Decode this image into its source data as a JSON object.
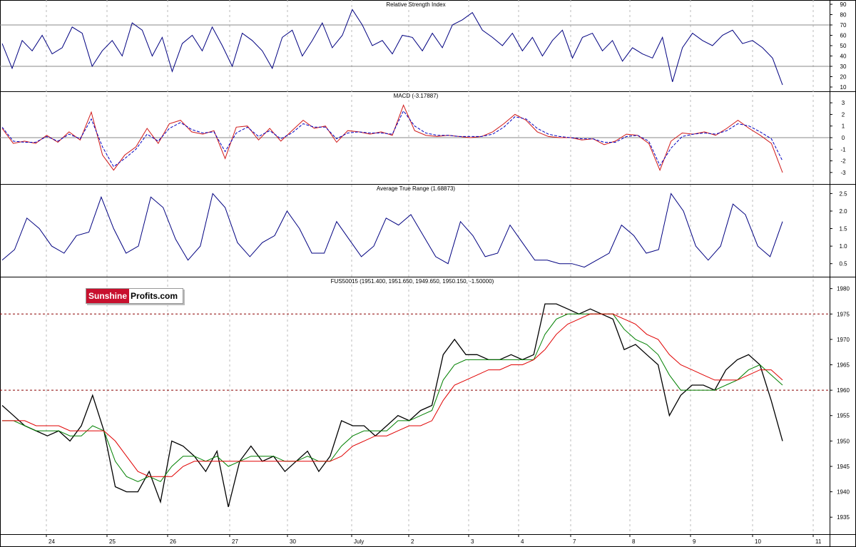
{
  "logo": {
    "part1": "Sunshine",
    "part2": "Profits.com"
  },
  "x_labels": [
    "24",
    "25",
    "26",
    "27",
    "30",
    "July",
    "2",
    "3",
    "4",
    "7",
    "8",
    "9",
    "10",
    "11"
  ],
  "colors": {
    "rsi": "#000080",
    "macd": "#d01818",
    "signal": "#0000c0",
    "atr": "#000080",
    "price": "#000000",
    "ma_fast": "#008000",
    "ma_slow": "#e00000",
    "hline": "#8b0000",
    "grid": "#bbbbbb"
  },
  "chart_data": [
    {
      "type": "line",
      "title": "Relative Strength Index",
      "ylim": [
        10,
        90
      ],
      "yticks": [
        "90",
        "80",
        "70",
        "60",
        "50",
        "40",
        "30",
        "20",
        "10"
      ],
      "reference_lines": [
        70,
        30
      ],
      "series": [
        {
          "values": [
            52,
            28,
            55,
            45,
            60,
            42,
            48,
            68,
            62,
            30,
            45,
            55,
            40,
            72,
            65,
            40,
            58,
            25,
            52,
            60,
            45,
            68,
            50,
            30,
            62,
            55,
            45,
            28,
            58,
            65,
            40,
            55,
            72,
            48,
            60,
            85,
            70,
            50,
            55,
            42,
            60,
            58,
            45,
            62,
            48,
            70,
            75,
            82,
            65,
            58,
            50,
            62,
            45,
            58,
            40,
            55,
            65,
            38,
            58,
            62,
            45,
            55,
            35,
            48,
            42,
            38,
            58,
            15,
            48,
            62,
            55,
            50,
            60,
            65,
            52,
            55,
            48,
            38,
            12
          ]
        }
      ]
    },
    {
      "type": "line",
      "title": "MACD (-3.17887)",
      "ylim": [
        -3.5,
        3.5
      ],
      "yticks": [
        "3",
        "2",
        "1",
        "0",
        "-1",
        "-2",
        "-3"
      ],
      "reference_lines": [
        0
      ],
      "series": [
        {
          "values": [
            0.8,
            -0.5,
            -0.3,
            -0.5,
            0.2,
            -0.4,
            0.5,
            -0.2,
            2.2,
            -1.5,
            -2.8,
            -1.5,
            -0.8,
            0.8,
            -0.5,
            1.2,
            1.5,
            0.5,
            0.3,
            0.6,
            -1.8,
            0.9,
            1.0,
            -0.2,
            0.8,
            -0.3,
            0.6,
            1.5,
            0.8,
            1.0,
            -0.4,
            0.6,
            0.5,
            0.3,
            0.5,
            0.2,
            2.8,
            0.6,
            0.2,
            0.1,
            0.2,
            0.1,
            0.0,
            0.1,
            0.5,
            1.2,
            2.0,
            1.5,
            0.5,
            0.1,
            0.0,
            0.0,
            -0.2,
            -0.1,
            -0.6,
            -0.3,
            0.3,
            0.2,
            -0.5,
            -2.8,
            -0.3,
            0.4,
            0.3,
            0.5,
            0.2,
            0.8,
            1.5,
            0.8,
            0.2,
            -0.5,
            -3.0
          ]
        },
        {
          "values": [
            0.9,
            -0.3,
            -0.4,
            -0.4,
            0.1,
            -0.3,
            0.3,
            -0.1,
            1.6,
            -0.8,
            -2.5,
            -1.8,
            -1.0,
            0.3,
            -0.3,
            0.8,
            1.3,
            0.7,
            0.4,
            0.5,
            -1.2,
            0.4,
            0.9,
            0.1,
            0.6,
            -0.1,
            0.4,
            1.2,
            0.9,
            0.9,
            -0.1,
            0.4,
            0.5,
            0.4,
            0.4,
            0.3,
            2.3,
            1.0,
            0.4,
            0.2,
            0.2,
            0.1,
            0.1,
            0.1,
            0.3,
            0.9,
            1.8,
            1.6,
            0.8,
            0.3,
            0.1,
            0.0,
            -0.1,
            -0.1,
            -0.4,
            -0.4,
            0.1,
            0.2,
            -0.3,
            -2.4,
            -0.9,
            0.1,
            0.3,
            0.4,
            0.3,
            0.6,
            1.2,
            1.0,
            0.5,
            -0.1,
            -2.0
          ]
        }
      ]
    },
    {
      "type": "line",
      "title": "Average True Range (1.68873)",
      "ylim": [
        0.25,
        2.65
      ],
      "yticks": [
        "2.5",
        "2.0",
        "1.5",
        "1.0",
        "0.5"
      ],
      "series": [
        {
          "values": [
            0.6,
            0.9,
            1.8,
            1.5,
            1.0,
            0.8,
            1.3,
            1.4,
            2.4,
            1.5,
            0.8,
            1.0,
            2.4,
            2.1,
            1.2,
            0.6,
            1.0,
            2.5,
            2.1,
            1.1,
            0.7,
            1.1,
            1.3,
            2.0,
            1.5,
            0.8,
            0.8,
            1.7,
            1.2,
            0.7,
            1.0,
            1.8,
            1.6,
            1.9,
            1.3,
            0.7,
            0.5,
            1.7,
            1.3,
            0.7,
            0.8,
            1.6,
            1.1,
            0.6,
            0.6,
            0.5,
            0.5,
            0.4,
            0.6,
            0.8,
            1.6,
            1.3,
            0.8,
            0.9,
            2.5,
            2.0,
            1.0,
            0.6,
            1.0,
            2.2,
            1.9,
            1.0,
            0.7,
            1.7
          ]
        }
      ]
    },
    {
      "type": "line",
      "title": "FUS50015 (1951.400, 1951.650, 1949.650, 1950.150, -1.50000)",
      "ylim": [
        1932.5,
        1981.5
      ],
      "yticks": [
        "1980",
        "1975",
        "1970",
        "1965",
        "1960",
        "1955",
        "1950",
        "1945",
        "1940",
        "1935"
      ],
      "reference_lines": [
        1975,
        1960
      ],
      "series": [
        {
          "values": [
            1957,
            1955,
            1953,
            1952,
            1951,
            1952,
            1950,
            1953,
            1959,
            1952,
            1941,
            1940,
            1940,
            1944,
            1938,
            1950,
            1949,
            1947,
            1944,
            1948,
            1937,
            1946,
            1949,
            1946,
            1947,
            1944,
            1946,
            1948,
            1944,
            1947,
            1954,
            1953,
            1953,
            1951,
            1953,
            1955,
            1954,
            1956,
            1957,
            1967,
            1970,
            1967,
            1967,
            1966,
            1966,
            1967,
            1966,
            1967,
            1977,
            1977,
            1976,
            1975,
            1976,
            1975,
            1974,
            1968,
            1969,
            1967,
            1965,
            1955,
            1959,
            1961,
            1961,
            1960,
            1964,
            1966,
            1967,
            1965,
            1958,
            1950
          ]
        },
        {
          "values": [
            1954,
            1954,
            1953,
            1952,
            1952,
            1952,
            1951,
            1951,
            1953,
            1952,
            1946,
            1943,
            1942,
            1943,
            1942,
            1945,
            1947,
            1947,
            1946,
            1947,
            1945,
            1946,
            1947,
            1947,
            1947,
            1946,
            1946,
            1947,
            1946,
            1946,
            1949,
            1951,
            1952,
            1952,
            1952,
            1954,
            1954,
            1955,
            1956,
            1962,
            1965,
            1966,
            1966,
            1966,
            1966,
            1966,
            1966,
            1966,
            1971,
            1974,
            1975,
            1975,
            1975,
            1975,
            1975,
            1972,
            1970,
            1969,
            1967,
            1963,
            1960,
            1960,
            1960,
            1960,
            1961,
            1962,
            1964,
            1965,
            1963,
            1961
          ]
        },
        {
          "values": [
            1954,
            1954,
            1954,
            1953,
            1953,
            1953,
            1952,
            1952,
            1952,
            1952,
            1950,
            1947,
            1944,
            1943,
            1943,
            1943,
            1945,
            1946,
            1946,
            1946,
            1946,
            1946,
            1946,
            1946,
            1946,
            1946,
            1946,
            1946,
            1946,
            1946,
            1947,
            1949,
            1950,
            1951,
            1951,
            1952,
            1953,
            1953,
            1954,
            1958,
            1961,
            1962,
            1963,
            1964,
            1964,
            1965,
            1965,
            1966,
            1968,
            1971,
            1973,
            1974,
            1975,
            1975,
            1975,
            1974,
            1973,
            1971,
            1970,
            1967,
            1965,
            1964,
            1963,
            1962,
            1962,
            1962,
            1963,
            1964,
            1964,
            1962
          ]
        }
      ]
    }
  ]
}
